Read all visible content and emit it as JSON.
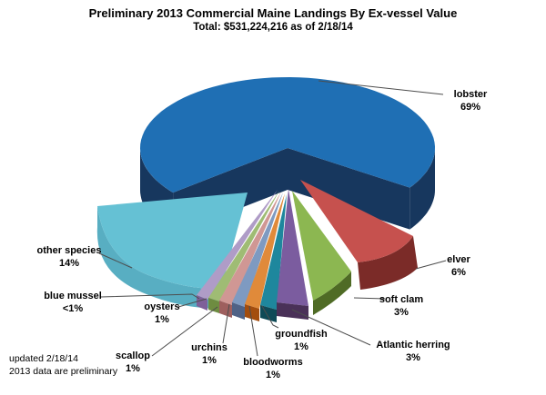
{
  "chart_data": {
    "type": "pie",
    "style": "3d-exploded",
    "title": "Preliminary 2013 Commercial Maine Landings By Ex-vessel Value",
    "subtitle": "Total: $531,224,216 as of 2/18/14",
    "total_value_usd": "531,224,216",
    "as_of_date": "2/18/14",
    "legend_position": "none (leader-line labels)",
    "slices": [
      {
        "id": "lobster",
        "name": "lobster",
        "pct_label": "69%",
        "value_pct": 69,
        "color": "#1F6FB4",
        "dark_color": "#17375E"
      },
      {
        "id": "elver",
        "name": "elver",
        "pct_label": "6%",
        "value_pct": 6,
        "color": "#C6514E",
        "dark_color": "#7B2B28"
      },
      {
        "id": "soft_clam",
        "name": "soft clam",
        "pct_label": "3%",
        "value_pct": 3,
        "color": "#8CB751",
        "dark_color": "#4F6B25"
      },
      {
        "id": "atlantic_herring",
        "name": "Atlantic herring",
        "pct_label": "3%",
        "value_pct": 3,
        "color": "#7B5C9F",
        "dark_color": "#4A3158"
      },
      {
        "id": "groundfish",
        "name": "groundfish",
        "pct_label": "1%",
        "value_pct": 1,
        "color": "#1E879D",
        "dark_color": "#0F4A57"
      },
      {
        "id": "bloodworms",
        "name": "bloodworms",
        "pct_label": "1%",
        "value_pct": 1,
        "color": "#E08A3A",
        "dark_color": "#A34D0E"
      },
      {
        "id": "urchins",
        "name": "urchins",
        "pct_label": "1%",
        "value_pct": 1,
        "color": "#7E9AC1",
        "dark_color": "#4F6286"
      },
      {
        "id": "scallop",
        "name": "scallop",
        "pct_label": "1%",
        "value_pct": 1,
        "color": "#D09794",
        "dark_color": "#9E5F5E"
      },
      {
        "id": "oysters",
        "name": "oysters",
        "pct_label": "1%",
        "value_pct": 1,
        "color": "#9FBC74",
        "dark_color": "#6E8C41"
      },
      {
        "id": "blue_mussel",
        "name": "blue mussel",
        "pct_label": "<1%",
        "value_pct": 0.5,
        "color": "#AF9CC7",
        "dark_color": "#7E6099"
      },
      {
        "id": "other_species",
        "name": "other species",
        "pct_label": "14%",
        "value_pct": 14,
        "color": "#65C1D4",
        "dark_color": "#58AEC2"
      }
    ]
  },
  "notes": {
    "line1": "updated 2/18/14",
    "line2": "2013 data are preliminary"
  },
  "ui": {
    "background_color": "#FFFFFF",
    "text_color": "#000000",
    "leader_line_color": "#4D4D4D"
  }
}
